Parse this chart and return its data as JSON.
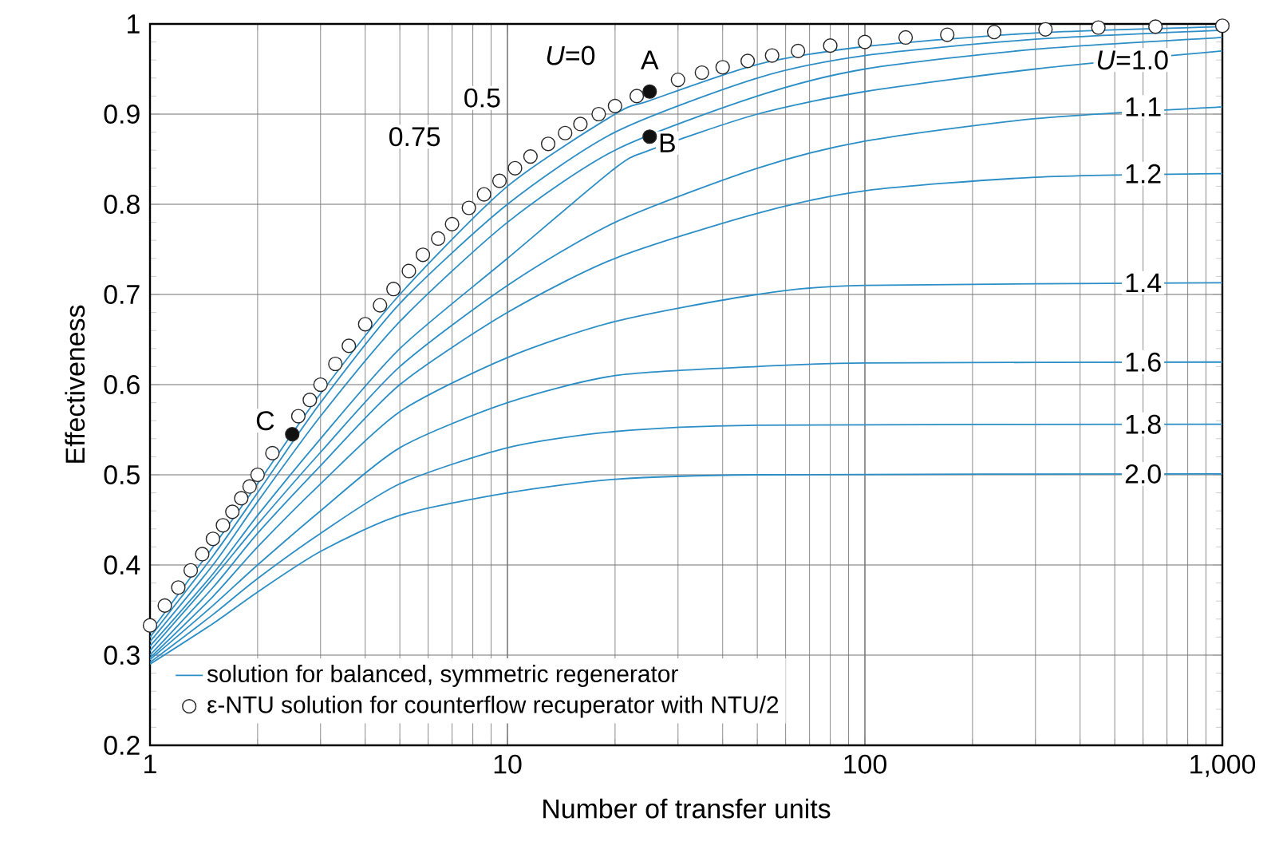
{
  "chart_data": {
    "type": "line",
    "xlabel": "Number of transfer units",
    "ylabel": "Effectiveness",
    "log": "x",
    "xlim": [
      1,
      1000
    ],
    "ylim": [
      0.2,
      1
    ],
    "xticks": [
      1,
      10,
      100,
      {
        "value": 1000,
        "label": "1,000"
      }
    ],
    "yticks": [
      0.2,
      0.3,
      0.4,
      0.5,
      0.6,
      0.7,
      0.8,
      0.9,
      1
    ],
    "grid": true,
    "legend": "bottom left",
    "series": [
      {
        "name": "solution for balanced, symmetric regenerator",
        "color": "#2b8ec6",
        "x": [
          1,
          1.5,
          2,
          3,
          5,
          10,
          20,
          25,
          50,
          100,
          300,
          1000
        ],
        "values": [
          0.325,
          0.42,
          0.49,
          0.59,
          0.7,
          0.82,
          0.9,
          0.915,
          0.955,
          0.975,
          0.99,
          0.997
        ]
      },
      {
        "color": "#2b8ec6",
        "x": [
          1,
          1.5,
          2,
          3,
          5,
          10,
          20,
          50,
          100,
          300,
          1000
        ],
        "values": [
          0.32,
          0.41,
          0.48,
          0.58,
          0.69,
          0.8,
          0.88,
          0.94,
          0.965,
          0.983,
          0.993
        ]
      },
      {
        "color": "#2b8ec6",
        "x": [
          1,
          1.5,
          2,
          3,
          5,
          10,
          20,
          50,
          100,
          300,
          1000
        ],
        "values": [
          0.315,
          0.4,
          0.47,
          0.565,
          0.67,
          0.78,
          0.86,
          0.92,
          0.95,
          0.972,
          0.985
        ]
      },
      {
        "color": "#2b8ec6",
        "x": [
          1,
          1.5,
          2,
          3,
          5,
          10,
          20,
          25,
          50,
          100,
          300,
          1000
        ],
        "values": [
          0.31,
          0.39,
          0.455,
          0.54,
          0.64,
          0.74,
          0.84,
          0.86,
          0.9,
          0.925,
          0.95,
          0.97
        ]
      },
      {
        "color": "#2b8ec6",
        "x": [
          1,
          1.5,
          2,
          3,
          5,
          10,
          20,
          50,
          100,
          300,
          1000
        ],
        "values": [
          0.305,
          0.385,
          0.445,
          0.525,
          0.62,
          0.71,
          0.78,
          0.84,
          0.87,
          0.895,
          0.908
        ]
      },
      {
        "color": "#2b8ec6",
        "x": [
          1,
          1.5,
          2,
          3,
          5,
          10,
          20,
          50,
          100,
          300,
          1000
        ],
        "values": [
          0.3,
          0.375,
          0.435,
          0.51,
          0.6,
          0.68,
          0.74,
          0.79,
          0.815,
          0.83,
          0.834
        ]
      },
      {
        "color": "#2b8ec6",
        "x": [
          1,
          1.5,
          2,
          3,
          5,
          10,
          20,
          50,
          100,
          1000
        ],
        "values": [
          0.297,
          0.365,
          0.42,
          0.49,
          0.57,
          0.63,
          0.67,
          0.7,
          0.71,
          0.713
        ]
      },
      {
        "color": "#2b8ec6",
        "x": [
          1,
          1.5,
          2,
          3,
          5,
          10,
          20,
          50,
          100,
          1000
        ],
        "values": [
          0.295,
          0.355,
          0.4,
          0.46,
          0.53,
          0.58,
          0.61,
          0.62,
          0.624,
          0.625
        ]
      },
      {
        "color": "#2b8ec6",
        "x": [
          1,
          1.5,
          2,
          3,
          5,
          10,
          20,
          50,
          1000
        ],
        "values": [
          0.292,
          0.345,
          0.385,
          0.435,
          0.49,
          0.53,
          0.548,
          0.555,
          0.556
        ]
      },
      {
        "color": "#2b8ec6",
        "x": [
          1,
          1.5,
          2,
          3,
          5,
          10,
          20,
          50,
          1000
        ],
        "values": [
          0.29,
          0.335,
          0.37,
          0.415,
          0.455,
          0.48,
          0.495,
          0.5,
          0.501
        ]
      },
      {
        "name": "ε-NTU solution for counterflow recuperator with NTU/2",
        "type": "scatter",
        "color": "#ffffff",
        "x": [
          1,
          1.1,
          1.2,
          1.3,
          1.4,
          1.5,
          1.6,
          1.7,
          1.8,
          1.9,
          2,
          2.2,
          2.4,
          2.6,
          2.8,
          3,
          3.3,
          3.6,
          4,
          4.4,
          4.8,
          5.3,
          5.8,
          6.4,
          7,
          7.8,
          8.6,
          9.5,
          10.5,
          11.6,
          13,
          14.5,
          16,
          18,
          20,
          23,
          26,
          30,
          35,
          40,
          47,
          55,
          65,
          80,
          100,
          130,
          170,
          230,
          320,
          450,
          650,
          1000
        ],
        "values": [
          0.333,
          0.355,
          0.375,
          0.394,
          0.412,
          0.429,
          0.444,
          0.459,
          0.474,
          0.487,
          0.5,
          0.524,
          null,
          0.565,
          0.583,
          0.6,
          0.623,
          0.643,
          0.667,
          0.688,
          0.706,
          0.726,
          0.744,
          0.762,
          0.778,
          0.796,
          0.811,
          0.826,
          0.84,
          0.853,
          0.867,
          0.879,
          0.889,
          0.9,
          0.909,
          0.92,
          null,
          0.938,
          0.946,
          0.952,
          0.959,
          0.965,
          0.97,
          0.976,
          0.98,
          0.985,
          0.988,
          0.991,
          0.994,
          0.996,
          0.997,
          0.998
        ]
      },
      {
        "type": "scatter",
        "color": "#111111",
        "x": [
          25,
          25,
          2.5
        ],
        "values": [
          0.925,
          0.875,
          0.545
        ]
      }
    ],
    "annotations": [
      {
        "text": "A",
        "x": 25,
        "y": 0.96
      },
      {
        "text": "B",
        "x": 28,
        "y": 0.868
      },
      {
        "text": "C",
        "x": 2.1,
        "y": 0.56
      },
      {
        "text": "*U*=0",
        "x": 15,
        "y": 0.965
      },
      {
        "text": "0.5",
        "x": 8.5,
        "y": 0.918
      },
      {
        "text": "0.75",
        "x": 5.5,
        "y": 0.875
      },
      {
        "text": "*U*=1.0",
        "x": 560,
        "y": 0.96
      },
      {
        "text": "1.1",
        "x": 600,
        "y": 0.908
      },
      {
        "text": "1.2",
        "x": 600,
        "y": 0.834
      },
      {
        "text": "1.4",
        "x": 600,
        "y": 0.713
      },
      {
        "text": "1.6",
        "x": 600,
        "y": 0.625
      },
      {
        "text": "1.8",
        "x": 600,
        "y": 0.556
      },
      {
        "text": "2.0",
        "x": 600,
        "y": 0.501
      }
    ]
  }
}
